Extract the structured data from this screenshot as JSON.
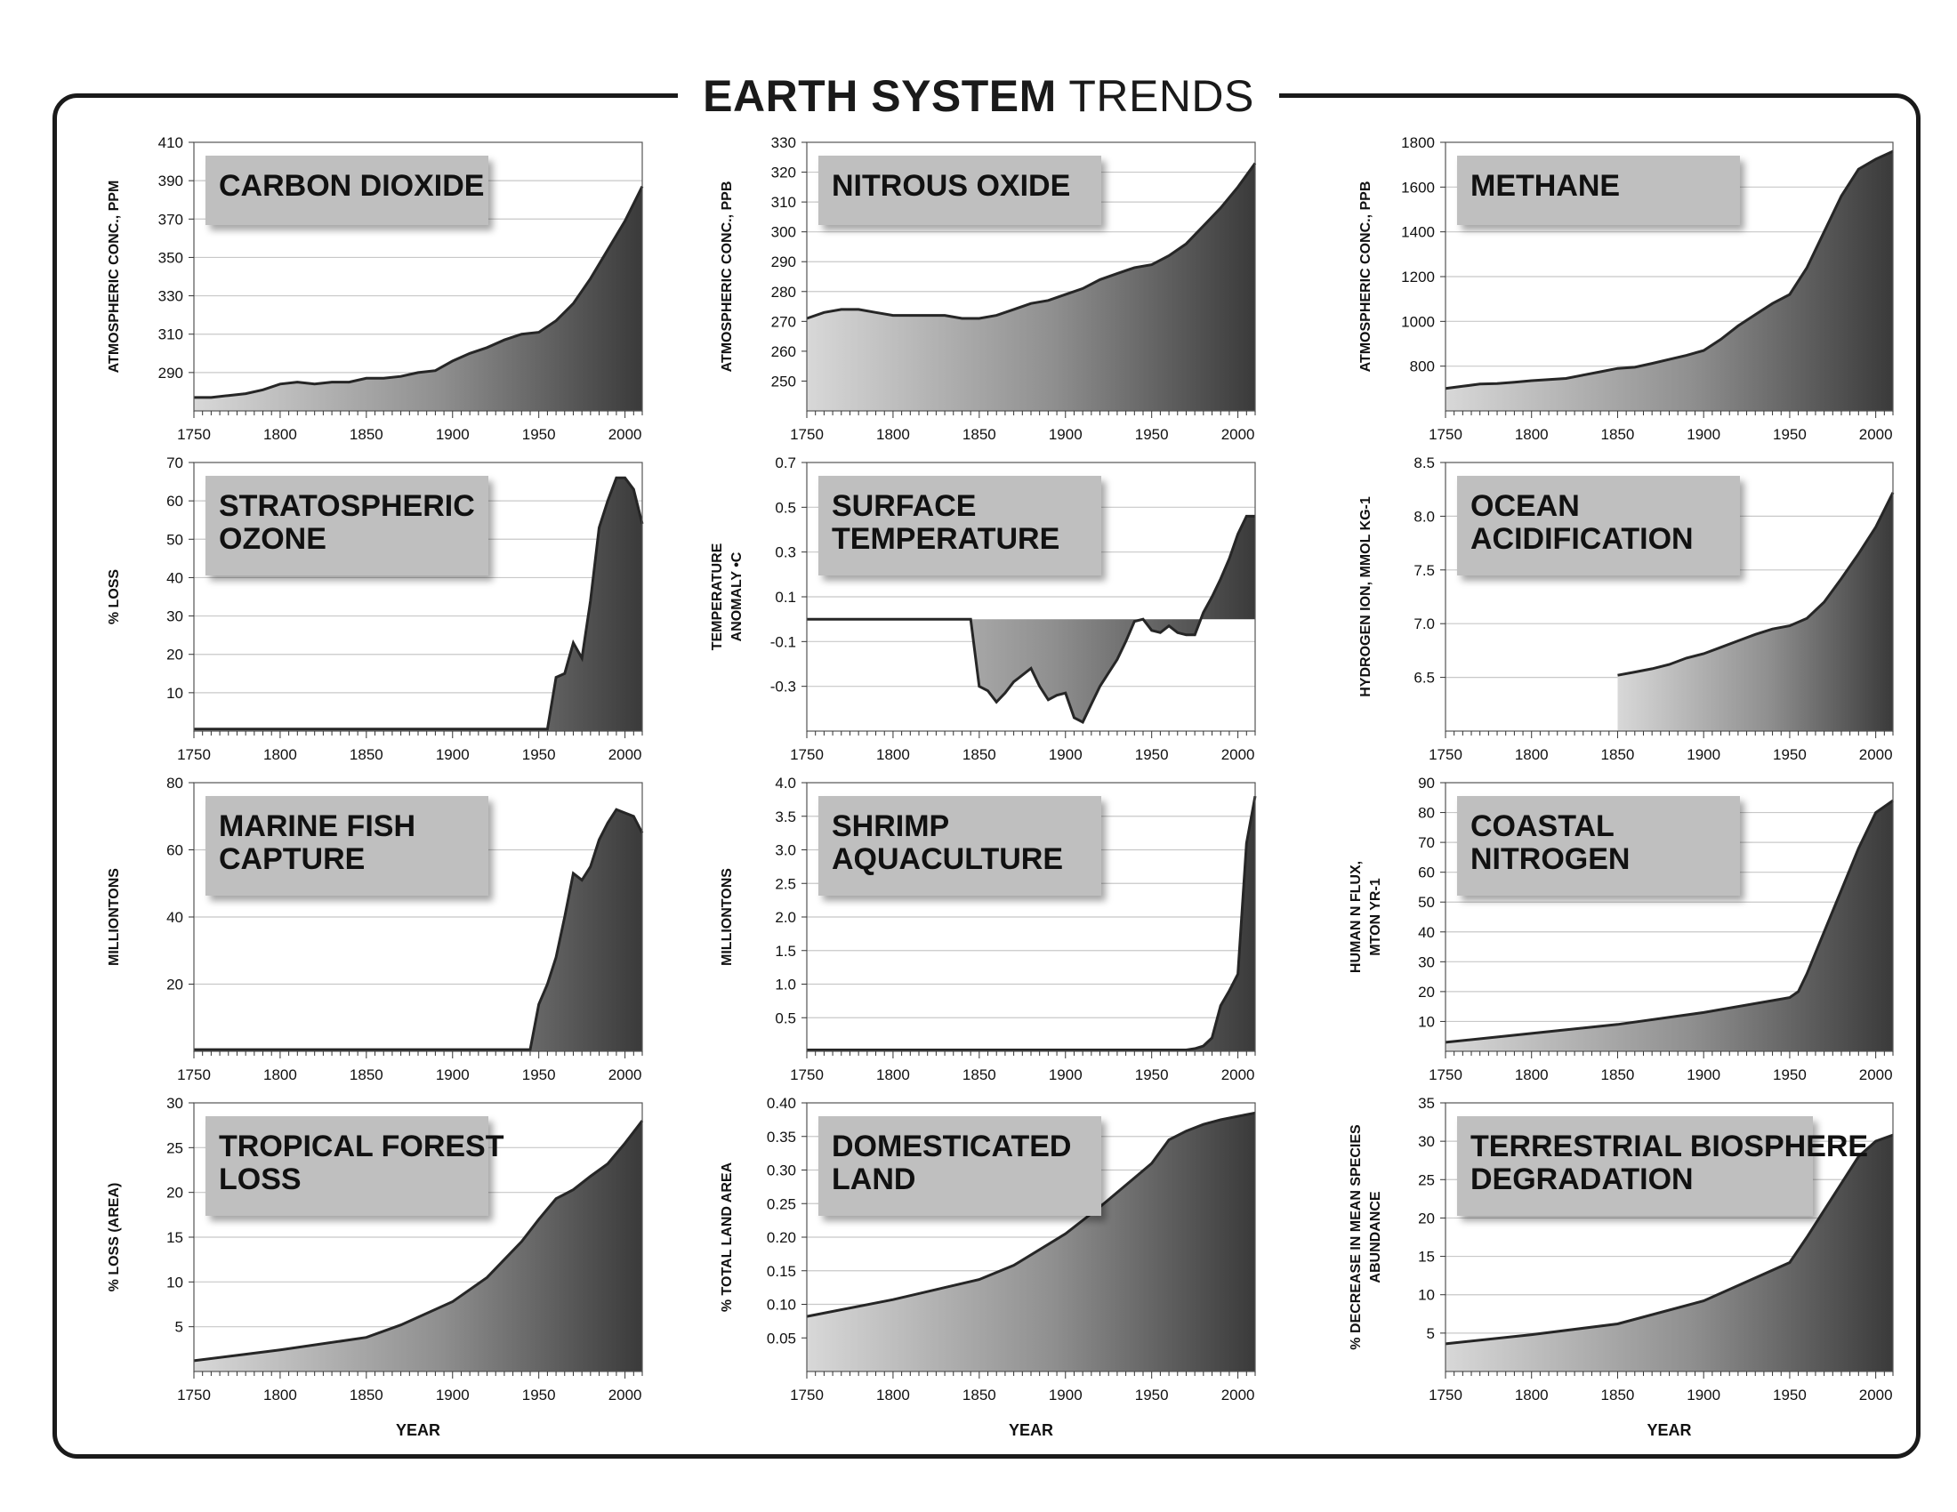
{
  "title": {
    "bold": "EARTH SYSTEM",
    "regular": "TRENDS"
  },
  "chart_data": [
    {
      "type": "area",
      "title": [
        "CARBON DIOXIDE"
      ],
      "ylabel": [
        "ATMOSPHERIC CONC., PPM"
      ],
      "xlabel": "",
      "ylim": [
        270,
        410
      ],
      "yticks": [
        290,
        310,
        330,
        350,
        370,
        390,
        410
      ],
      "xlim": [
        1750,
        2010
      ],
      "xticks": [
        1750,
        1800,
        1850,
        1900,
        1950,
        2000
      ],
      "x": [
        1750,
        1760,
        1770,
        1780,
        1790,
        1800,
        1810,
        1820,
        1830,
        1840,
        1850,
        1860,
        1870,
        1880,
        1890,
        1900,
        1910,
        1920,
        1930,
        1940,
        1950,
        1960,
        1970,
        1980,
        1990,
        2000,
        2010
      ],
      "y": [
        277,
        277,
        278,
        279,
        281,
        284,
        285,
        284,
        285,
        285,
        287,
        287,
        288,
        290,
        291,
        296,
        300,
        303,
        307,
        310,
        311,
        317,
        326,
        339,
        354,
        369,
        387
      ]
    },
    {
      "type": "area",
      "title": [
        "NITROUS OXIDE"
      ],
      "ylabel": [
        "ATMOSPHERIC CONC., PPB"
      ],
      "xlabel": "",
      "ylim": [
        240,
        330
      ],
      "yticks": [
        250,
        260,
        270,
        280,
        290,
        300,
        310,
        320,
        330
      ],
      "xlim": [
        1750,
        2010
      ],
      "xticks": [
        1750,
        1800,
        1850,
        1900,
        1950,
        2000
      ],
      "x": [
        1750,
        1760,
        1770,
        1780,
        1790,
        1800,
        1810,
        1820,
        1830,
        1840,
        1850,
        1860,
        1870,
        1880,
        1890,
        1900,
        1910,
        1920,
        1930,
        1940,
        1950,
        1960,
        1970,
        1980,
        1990,
        2000,
        2010
      ],
      "y": [
        271,
        273,
        274,
        274,
        273,
        272,
        272,
        272,
        272,
        271,
        271,
        272,
        274,
        276,
        277,
        279,
        281,
        284,
        286,
        288,
        289,
        292,
        296,
        302,
        308,
        315,
        323
      ]
    },
    {
      "type": "area",
      "title": [
        "METHANE"
      ],
      "ylabel": [
        "ATMOSPHERIC CONC., PPB"
      ],
      "xlabel": "",
      "ylim": [
        600,
        1800
      ],
      "yticks": [
        800,
        1000,
        1200,
        1400,
        1600,
        1800
      ],
      "xlim": [
        1750,
        2010
      ],
      "xticks": [
        1750,
        1800,
        1850,
        1900,
        1950,
        2000
      ],
      "x": [
        1750,
        1760,
        1770,
        1780,
        1790,
        1800,
        1810,
        1820,
        1830,
        1840,
        1850,
        1860,
        1870,
        1880,
        1890,
        1900,
        1910,
        1920,
        1930,
        1940,
        1950,
        1960,
        1970,
        1980,
        1990,
        2000,
        2010
      ],
      "y": [
        700,
        710,
        720,
        722,
        728,
        735,
        740,
        745,
        760,
        775,
        790,
        795,
        812,
        830,
        848,
        870,
        920,
        980,
        1030,
        1080,
        1120,
        1240,
        1400,
        1560,
        1680,
        1725,
        1760
      ]
    },
    {
      "type": "area",
      "title": [
        "STRATOSPHERIC",
        "OZONE"
      ],
      "ylabel": [
        "% LOSS"
      ],
      "xlabel": "",
      "ylim": [
        0,
        70
      ],
      "yticks": [
        10,
        20,
        30,
        40,
        50,
        60,
        70
      ],
      "xlim": [
        1750,
        2010
      ],
      "xticks": [
        1750,
        1800,
        1850,
        1900,
        1950,
        2000
      ],
      "x": [
        1750,
        1800,
        1850,
        1900,
        1950,
        1955,
        1960,
        1965,
        1970,
        1975,
        1980,
        1985,
        1990,
        1995,
        2000,
        2005,
        2010
      ],
      "y": [
        0.5,
        0.5,
        0.5,
        0.5,
        0.5,
        0.5,
        14,
        15,
        23,
        19,
        34,
        53,
        60,
        66,
        66,
        63,
        54
      ]
    },
    {
      "type": "area",
      "title": [
        "SURFACE",
        "TEMPERATURE"
      ],
      "ylabel": [
        "TEMPERATURE",
        "ANOMALY •C"
      ],
      "xlabel": "",
      "ylim": [
        -0.5,
        0.7
      ],
      "yticks": [
        -0.3,
        -0.1,
        0.1,
        0.3,
        0.5,
        0.7
      ],
      "xlim": [
        1750,
        2010
      ],
      "xticks": [
        1750,
        1800,
        1850,
        1900,
        1950,
        2000
      ],
      "baseline": 0,
      "x": [
        1750,
        1800,
        1845,
        1850,
        1855,
        1860,
        1865,
        1870,
        1875,
        1880,
        1885,
        1890,
        1895,
        1900,
        1905,
        1910,
        1915,
        1920,
        1925,
        1930,
        1935,
        1940,
        1945,
        1950,
        1955,
        1960,
        1965,
        1970,
        1975,
        1980,
        1985,
        1990,
        1995,
        2000,
        2005,
        2010
      ],
      "y": [
        0,
        0,
        0,
        -0.3,
        -0.32,
        -0.37,
        -0.33,
        -0.28,
        -0.25,
        -0.22,
        -0.3,
        -0.36,
        -0.34,
        -0.33,
        -0.44,
        -0.46,
        -0.38,
        -0.3,
        -0.24,
        -0.18,
        -0.1,
        -0.01,
        0,
        -0.05,
        -0.06,
        -0.03,
        -0.06,
        -0.07,
        -0.07,
        0.03,
        0.1,
        0.18,
        0.27,
        0.38,
        0.46,
        0.46
      ]
    },
    {
      "type": "area",
      "title": [
        "OCEAN",
        "ACIDIFICATION"
      ],
      "ylabel": [
        "HYDROGEN ION, MMOL KG-1"
      ],
      "xlabel": "",
      "ylim": [
        6.0,
        8.5
      ],
      "yticks": [
        6.5,
        7.0,
        7.5,
        8.0,
        8.5
      ],
      "xlim": [
        1750,
        2010
      ],
      "xticks": [
        1750,
        1800,
        1850,
        1900,
        1950,
        2000
      ],
      "x": [
        1850,
        1860,
        1870,
        1880,
        1890,
        1900,
        1910,
        1920,
        1930,
        1940,
        1950,
        1960,
        1970,
        1980,
        1990,
        2000,
        2010
      ],
      "y": [
        6.52,
        6.55,
        6.58,
        6.62,
        6.68,
        6.72,
        6.78,
        6.84,
        6.9,
        6.95,
        6.98,
        7.05,
        7.2,
        7.42,
        7.65,
        7.9,
        8.22
      ]
    },
    {
      "type": "area",
      "title": [
        "MARINE FISH",
        "CAPTURE"
      ],
      "ylabel": [
        "MILLIONTONS"
      ],
      "xlabel": "",
      "ylim": [
        0,
        80
      ],
      "yticks": [
        20,
        40,
        60,
        80
      ],
      "xlim": [
        1750,
        2010
      ],
      "xticks": [
        1750,
        1800,
        1850,
        1900,
        1950,
        2000
      ],
      "x": [
        1750,
        1800,
        1850,
        1900,
        1945,
        1950,
        1955,
        1960,
        1965,
        1970,
        1975,
        1980,
        1985,
        1990,
        1995,
        2000,
        2005,
        2010
      ],
      "y": [
        0.5,
        0.5,
        0.5,
        0.5,
        0.5,
        14,
        20,
        28,
        40,
        53,
        51,
        55,
        63,
        68,
        72,
        71,
        70,
        65
      ]
    },
    {
      "type": "area",
      "title": [
        "SHRIMP",
        "AQUACULTURE"
      ],
      "ylabel": [
        "MILLIONTONS"
      ],
      "xlabel": "",
      "ylim": [
        0,
        4.0
      ],
      "yticks": [
        0.5,
        1.0,
        1.5,
        2.0,
        2.5,
        3.0,
        3.5,
        4.0
      ],
      "xlim": [
        1750,
        2010
      ],
      "xticks": [
        1750,
        1800,
        1850,
        1900,
        1950,
        2000
      ],
      "x": [
        1750,
        1800,
        1850,
        1900,
        1950,
        1970,
        1975,
        1980,
        1985,
        1990,
        1995,
        2000,
        2005,
        2010
      ],
      "y": [
        0.02,
        0.02,
        0.02,
        0.02,
        0.02,
        0.02,
        0.04,
        0.08,
        0.2,
        0.68,
        0.9,
        1.15,
        3.1,
        3.8
      ]
    },
    {
      "type": "area",
      "title": [
        "COASTAL",
        "NITROGEN"
      ],
      "ylabel": [
        "HUMAN N FLUX,",
        "MTON YR-1"
      ],
      "xlabel": "",
      "ylim": [
        0,
        90
      ],
      "yticks": [
        10,
        20,
        30,
        40,
        50,
        60,
        70,
        80,
        90
      ],
      "xlim": [
        1750,
        2010
      ],
      "xticks": [
        1750,
        1800,
        1850,
        1900,
        1950,
        2000
      ],
      "x": [
        1750,
        1800,
        1850,
        1900,
        1950,
        1955,
        1960,
        1970,
        1980,
        1990,
        2000,
        2010
      ],
      "y": [
        3,
        6,
        9,
        13,
        18,
        20,
        26,
        40,
        54,
        68,
        80,
        84
      ]
    },
    {
      "type": "area",
      "title": [
        "TROPICAL FOREST",
        "LOSS"
      ],
      "ylabel": [
        "% LOSS (AREA)"
      ],
      "xlabel": "YEAR",
      "ylim": [
        0,
        30
      ],
      "yticks": [
        5,
        10,
        15,
        20,
        25,
        30
      ],
      "xlim": [
        1750,
        2010
      ],
      "xticks": [
        1750,
        1800,
        1850,
        1900,
        1950,
        2000
      ],
      "x": [
        1750,
        1800,
        1850,
        1870,
        1900,
        1920,
        1940,
        1950,
        1960,
        1970,
        1980,
        1990,
        2000,
        2010
      ],
      "y": [
        1.2,
        2.4,
        3.8,
        5.2,
        7.8,
        10.5,
        14.5,
        17,
        19.3,
        20.3,
        21.8,
        23.2,
        25.5,
        28
      ]
    },
    {
      "type": "area",
      "title": [
        "DOMESTICATED",
        "LAND"
      ],
      "ylabel": [
        "% TOTAL LAND AREA"
      ],
      "xlabel": "YEAR",
      "ylim": [
        0,
        0.4
      ],
      "yticks": [
        0.05,
        0.1,
        0.15,
        0.2,
        0.25,
        0.3,
        0.35,
        0.4
      ],
      "xlim": [
        1750,
        2010
      ],
      "xticks": [
        1750,
        1800,
        1850,
        1900,
        1950,
        2000
      ],
      "x": [
        1750,
        1800,
        1850,
        1870,
        1900,
        1920,
        1950,
        1960,
        1970,
        1980,
        1990,
        2000,
        2010
      ],
      "y": [
        0.082,
        0.107,
        0.137,
        0.158,
        0.205,
        0.245,
        0.31,
        0.345,
        0.358,
        0.368,
        0.375,
        0.38,
        0.385
      ]
    },
    {
      "type": "area",
      "title": [
        "TERRESTRIAL BIOSPHERE",
        "DEGRADATION"
      ],
      "ylabel": [
        "% DECREASE IN MEAN SPECIES",
        "ABUNDANCE"
      ],
      "xlabel": "YEAR",
      "ylim": [
        0,
        35
      ],
      "yticks": [
        5,
        10,
        15,
        20,
        25,
        30,
        35
      ],
      "xlim": [
        1750,
        2010
      ],
      "xticks": [
        1750,
        1800,
        1850,
        1900,
        1950,
        2000
      ],
      "x": [
        1750,
        1800,
        1850,
        1900,
        1950,
        1960,
        1970,
        1980,
        1990,
        2000,
        2010
      ],
      "y": [
        3.6,
        4.8,
        6.2,
        9.2,
        14.2,
        17.5,
        21,
        24.5,
        28,
        30,
        30.8
      ]
    }
  ]
}
